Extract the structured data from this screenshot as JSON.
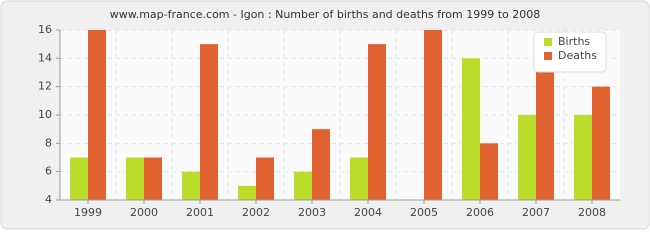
{
  "chart_data": {
    "type": "bar",
    "title": "www.map-france.com - Igon : Number of births and deaths from 1999 to 2008",
    "categories": [
      "1999",
      "2000",
      "2001",
      "2002",
      "2003",
      "2004",
      "2005",
      "2006",
      "2007",
      "2008"
    ],
    "series": [
      {
        "name": "Births",
        "color": "#bcdc2c",
        "values": [
          7,
          7,
          6,
          5,
          6,
          7,
          4,
          14,
          10,
          10
        ]
      },
      {
        "name": "Deaths",
        "color": "#e0632f",
        "values": [
          16,
          7,
          15,
          7,
          9,
          15,
          16,
          8,
          14,
          12
        ]
      }
    ],
    "ylim": [
      4,
      16
    ],
    "yticks": [
      4,
      6,
      8,
      10,
      12,
      14,
      16
    ],
    "grid": true,
    "legend": "top-right"
  }
}
